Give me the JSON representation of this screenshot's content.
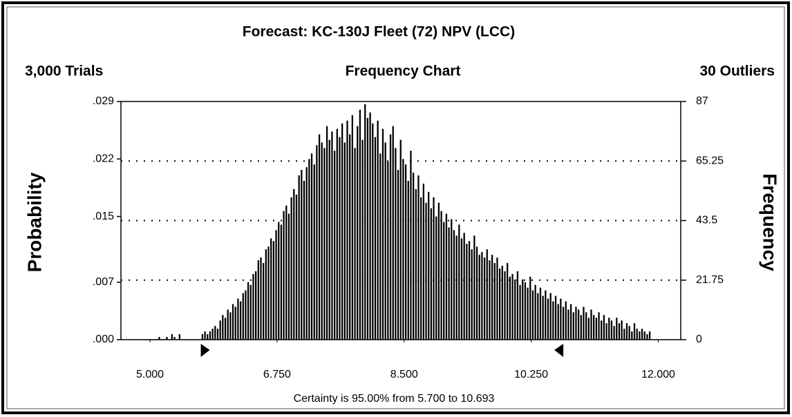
{
  "chart_data": {
    "type": "histogram",
    "title": "Forecast: KC-130J Fleet (72) NPV (LCC)",
    "trials_label": "3,000 Trials",
    "subtitle": "Frequency Chart",
    "outliers_label": "30 Outliers",
    "ylabel": "Probability",
    "y2label": "Frequency",
    "certainty_text": "Certainty is 95.00% from 5.700 to 10.693",
    "certainty_range": [
      5.7,
      10.693
    ],
    "color": "#000000",
    "grid": true,
    "xlim": [
      4.6,
      12.31
    ],
    "xticks": [
      {
        "value": 5,
        "label": "5.000"
      },
      {
        "value": 6.75,
        "label": "6.750"
      },
      {
        "value": 8.5,
        "label": "8.500"
      },
      {
        "value": 10.25,
        "label": "10.250"
      },
      {
        "value": 12,
        "label": "12.000"
      }
    ],
    "ylim": [
      0,
      0.029
    ],
    "yticks": [
      {
        "value": 0,
        "label": ".000"
      },
      {
        "value": 0.007,
        "label": ".007"
      },
      {
        "value": 0.015,
        "label": ".015"
      },
      {
        "value": 0.022,
        "label": ".022"
      },
      {
        "value": 0.029,
        "label": ".029"
      }
    ],
    "y2lim": [
      0,
      87
    ],
    "y2ticks": [
      0,
      21.75,
      43.5,
      65.25,
      87
    ],
    "bins": [
      4.9,
      4.935,
      4.97,
      5.005,
      5.04,
      5.075,
      5.11,
      5.145,
      5.18,
      5.215,
      5.25,
      5.285,
      5.32,
      5.355,
      5.39,
      5.425,
      5.46,
      5.495,
      5.53,
      5.565,
      5.6,
      5.635,
      5.67,
      5.705,
      5.74,
      5.775,
      5.81,
      5.845,
      5.88,
      5.915,
      5.95,
      5.985,
      6.02,
      6.055,
      6.09,
      6.125,
      6.16,
      6.195,
      6.23,
      6.265,
      6.3,
      6.335,
      6.37,
      6.405,
      6.44,
      6.475,
      6.51,
      6.545,
      6.58,
      6.615,
      6.65,
      6.685,
      6.72,
      6.755,
      6.79,
      6.825,
      6.86,
      6.895,
      6.93,
      6.965,
      7,
      7.035,
      7.07,
      7.105,
      7.14,
      7.175,
      7.21,
      7.245,
      7.28,
      7.315,
      7.35,
      7.385,
      7.42,
      7.455,
      7.49,
      7.525,
      7.56,
      7.595,
      7.63,
      7.665,
      7.7,
      7.735,
      7.77,
      7.805,
      7.84,
      7.875,
      7.91,
      7.945,
      7.98,
      8.015,
      8.05,
      8.085,
      8.12,
      8.155,
      8.19,
      8.225,
      8.26,
      8.295,
      8.33,
      8.365,
      8.4,
      8.435,
      8.47,
      8.505,
      8.54,
      8.575,
      8.61,
      8.645,
      8.68,
      8.715,
      8.75,
      8.785,
      8.82,
      8.855,
      8.89,
      8.925,
      8.96,
      8.995,
      9.03,
      9.065,
      9.1,
      9.135,
      9.17,
      9.205,
      9.24,
      9.275,
      9.31,
      9.345,
      9.38,
      9.415,
      9.45,
      9.485,
      9.52,
      9.555,
      9.59,
      9.625,
      9.66,
      9.695,
      9.73,
      9.765,
      9.8,
      9.835,
      9.87,
      9.905,
      9.94,
      9.975,
      10.01,
      10.045,
      10.08,
      10.115,
      10.15,
      10.185,
      10.22,
      10.255,
      10.29,
      10.325,
      10.36,
      10.395,
      10.43,
      10.465,
      10.5,
      10.535,
      10.57,
      10.605,
      10.64,
      10.675,
      10.71,
      10.745,
      10.78,
      10.815,
      10.85,
      10.885,
      10.92,
      10.955,
      10.99,
      11.025,
      11.06,
      11.095,
      11.13,
      11.165,
      11.2,
      11.235,
      11.27,
      11.305,
      11.34,
      11.375,
      11.41,
      11.445,
      11.48,
      11.515,
      11.55,
      11.585,
      11.62,
      11.655,
      11.69,
      11.725,
      11.76,
      11.795,
      11.83,
      11.865,
      11.9
    ],
    "series": [
      {
        "axis": "y2",
        "values": [
          0,
          0,
          0,
          0,
          0,
          0,
          1,
          0,
          0,
          1,
          0,
          2,
          1,
          0,
          2,
          0,
          0,
          0,
          0,
          0,
          0,
          0,
          0,
          2,
          3,
          2,
          3,
          4,
          5,
          4,
          7,
          9,
          8,
          11,
          10,
          13,
          12,
          15,
          14,
          17,
          18,
          21,
          20,
          24,
          25,
          29,
          30,
          28,
          33,
          34,
          37,
          36,
          40,
          43,
          42,
          47,
          49,
          46,
          52,
          55,
          53,
          60,
          62,
          58,
          63,
          66,
          68,
          64,
          71,
          75,
          72,
          70,
          78,
          73,
          76,
          69,
          77,
          74,
          79,
          72,
          80,
          75,
          82,
          70,
          78,
          84,
          73,
          86,
          81,
          83,
          79,
          74,
          80,
          68,
          77,
          72,
          65,
          75,
          78,
          70,
          62,
          73,
          66,
          64,
          58,
          69,
          61,
          55,
          60,
          52,
          57,
          50,
          54,
          48,
          52,
          45,
          50,
          47,
          43,
          46,
          41,
          44,
          40,
          38,
          42,
          37,
          39,
          35,
          36,
          33,
          38,
          34,
          31,
          32,
          30,
          33,
          29,
          31,
          28,
          30,
          26,
          27,
          25,
          28,
          23,
          24,
          22,
          25,
          20,
          22,
          21,
          19,
          23,
          18,
          20,
          17,
          19,
          16,
          18,
          15,
          17,
          14,
          16,
          13,
          15,
          12,
          14,
          11,
          13,
          10,
          12,
          11,
          9,
          12,
          10,
          8,
          11,
          9,
          8,
          10,
          7,
          9,
          6,
          8,
          7,
          5,
          8,
          6,
          7,
          4,
          6,
          5,
          3,
          6,
          4,
          3,
          4,
          3,
          2,
          3
        ]
      }
    ]
  }
}
